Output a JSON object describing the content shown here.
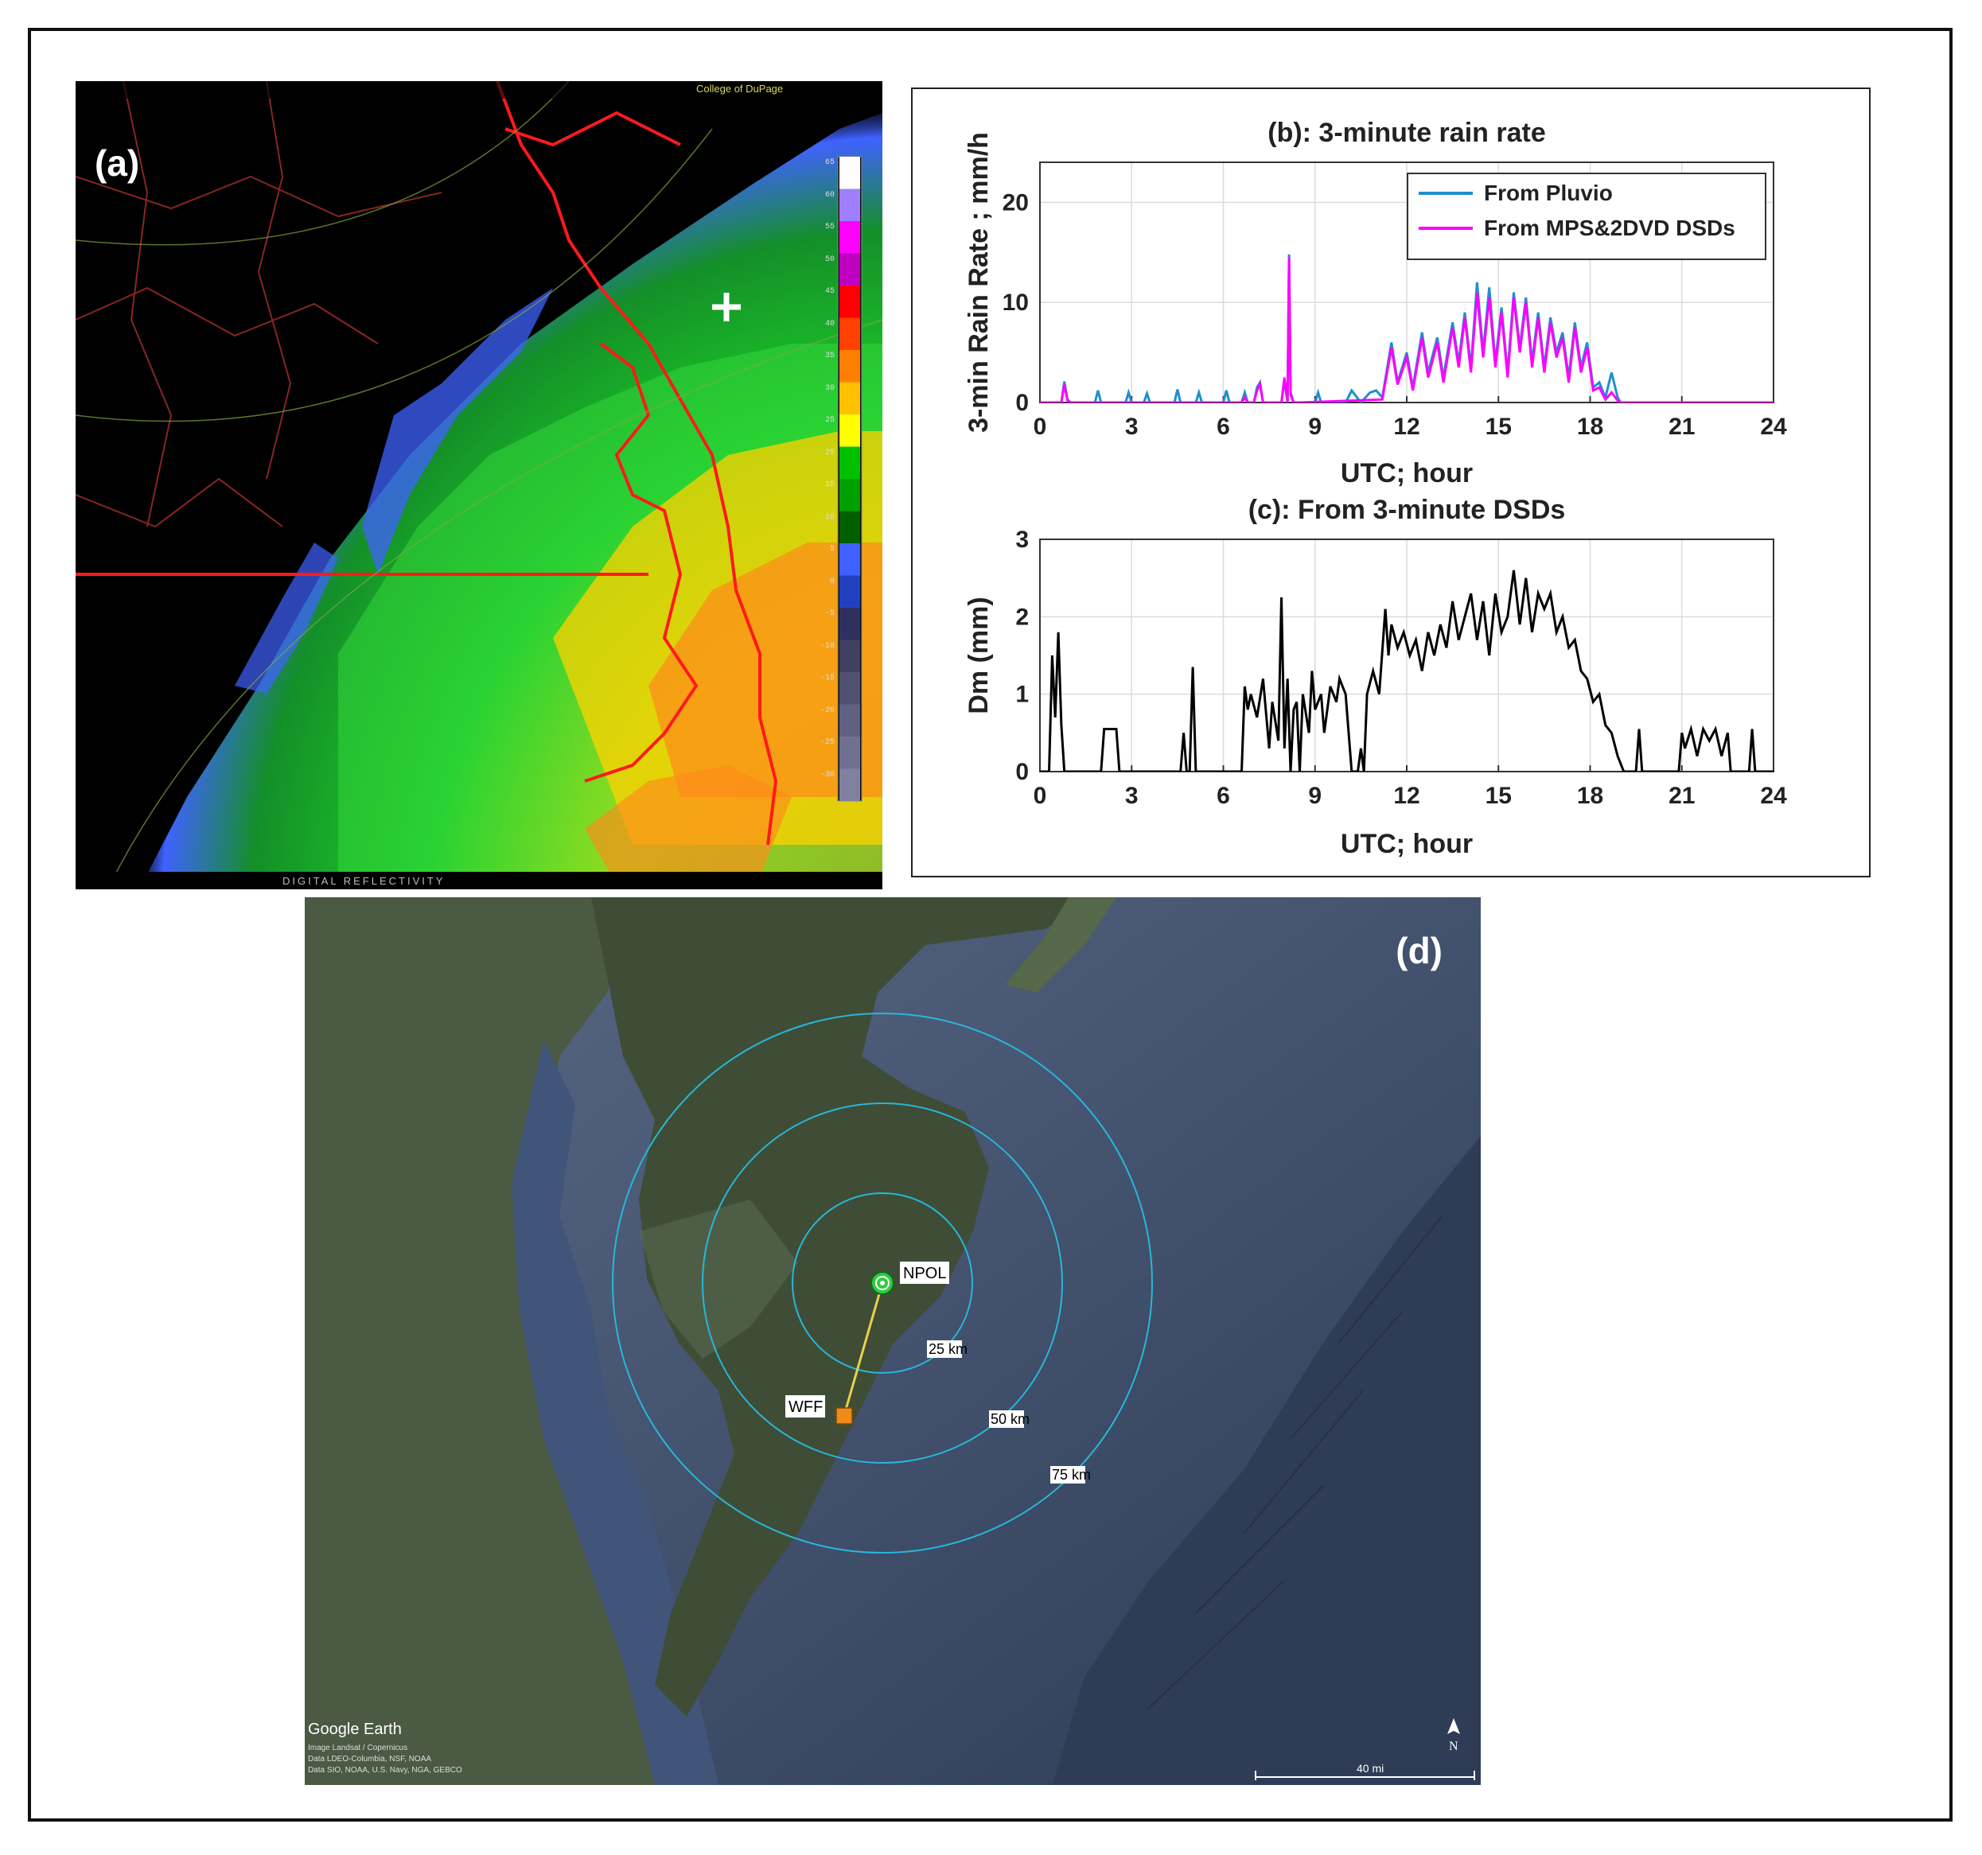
{
  "panels": {
    "a": {
      "label": "(a)",
      "header_text": "College of DuPage",
      "footer_text": "DIGITAL REFLECTIVITY",
      "colorbar_ticks": [
        "65",
        "60",
        "55",
        "50",
        "45",
        "40",
        "35",
        "30",
        "25",
        "20",
        "15",
        "10",
        "5",
        "0",
        "-5",
        "-10",
        "-15",
        "-20",
        "-25",
        "-30"
      ],
      "colorbar_colors": [
        "#ffffff",
        "#9f7fff",
        "#ff00ff",
        "#c000c0",
        "#ff0000",
        "#ff4000",
        "#ff8000",
        "#ffc000",
        "#ffff00",
        "#00c000",
        "#00a000",
        "#006000",
        "#4060ff",
        "#2040c0",
        "#303060",
        "#404060",
        "#505070",
        "#606080",
        "#707090",
        "#8080a0"
      ]
    },
    "d": {
      "label": "(d)",
      "sites": {
        "npol": "NPOL",
        "wff": "WFF"
      },
      "ranges": [
        "25 km",
        "50 km",
        "75 km"
      ],
      "scale_label": "40 mi",
      "north_label": "N",
      "brand": "Google Earth",
      "credits": [
        "Image Landsat / Copernicus",
        "Data LDEO-Columbia, NSF, NOAA",
        "Data SIO, NOAA, U.S. Navy, NGA, GEBCO"
      ]
    }
  },
  "chart_data": [
    {
      "type": "line",
      "title": "(b): 3-minute rain rate",
      "xlabel": "UTC; hour",
      "ylabel": "3-min Rain Rate ; mm/h",
      "xlim": [
        0,
        24
      ],
      "ylim": [
        0,
        24
      ],
      "xticks": [
        0,
        3,
        6,
        9,
        12,
        15,
        18,
        21,
        24
      ],
      "yticks": [
        0,
        10,
        20
      ],
      "grid": true,
      "legend_position": "top-right",
      "series": [
        {
          "name": "From Pluvio",
          "color": "#1f8fce",
          "x": [
            0,
            0.7,
            0.8,
            0.9,
            1.0,
            1.8,
            1.9,
            2.0,
            2.8,
            2.9,
            3.0,
            3.4,
            3.5,
            3.6,
            4.4,
            4.5,
            4.6,
            5.1,
            5.2,
            5.3,
            6.0,
            6.1,
            6.2,
            6.6,
            6.7,
            6.8,
            7.0,
            7.1,
            7.2,
            7.3,
            7.9,
            8.0,
            8.1,
            8.15,
            8.2,
            8.3,
            8.5,
            9.0,
            9.1,
            9.2,
            9.5,
            10.0,
            10.2,
            10.5,
            10.8,
            11.0,
            11.2,
            11.5,
            11.7,
            12.0,
            12.2,
            12.5,
            12.7,
            13.0,
            13.2,
            13.5,
            13.7,
            13.9,
            14.1,
            14.3,
            14.5,
            14.7,
            14.9,
            15.1,
            15.3,
            15.5,
            15.7,
            15.9,
            16.1,
            16.3,
            16.5,
            16.7,
            16.9,
            17.1,
            17.3,
            17.5,
            17.7,
            17.9,
            18.1,
            18.3,
            18.5,
            18.7,
            18.9,
            19.0,
            19.5,
            20.0,
            21.0,
            22.0,
            23.0,
            24.0
          ],
          "y": [
            0,
            0,
            2.1,
            0.3,
            0,
            0,
            1.2,
            0,
            0,
            1.0,
            0,
            0,
            0.9,
            0,
            0,
            1.3,
            0,
            0,
            1.0,
            0,
            0,
            1.2,
            0,
            0,
            1.0,
            0,
            0,
            1.5,
            2.0,
            0,
            0,
            2.2,
            0,
            14.8,
            1.0,
            0,
            0,
            0,
            1.0,
            0,
            0,
            0,
            1.2,
            0,
            1.0,
            1.2,
            0.5,
            6.0,
            2.0,
            5.0,
            1.5,
            7.0,
            3.0,
            6.5,
            2.5,
            8.0,
            4.0,
            9.0,
            3.5,
            12.0,
            5.0,
            11.5,
            4.0,
            9.5,
            3.0,
            11.0,
            5.5,
            10.5,
            4.0,
            9.0,
            3.5,
            8.5,
            5.0,
            7.0,
            2.5,
            8.0,
            3.5,
            6.0,
            1.5,
            2.0,
            0.5,
            3.0,
            0.5,
            0,
            0,
            0,
            0,
            0,
            0,
            0
          ]
        },
        {
          "name": "From MPS&2DVD DSDs",
          "color": "#ff00ff",
          "x": [
            0,
            0.7,
            0.8,
            0.9,
            1.0,
            6.6,
            6.7,
            6.8,
            7.0,
            7.1,
            7.2,
            7.3,
            7.9,
            8.0,
            8.1,
            8.15,
            8.2,
            8.3,
            8.5,
            11.2,
            11.5,
            11.7,
            12.0,
            12.2,
            12.5,
            12.7,
            13.0,
            13.2,
            13.5,
            13.7,
            13.9,
            14.1,
            14.3,
            14.5,
            14.7,
            14.9,
            15.1,
            15.3,
            15.5,
            15.7,
            15.9,
            16.1,
            16.3,
            16.5,
            16.7,
            16.9,
            17.1,
            17.3,
            17.5,
            17.7,
            17.9,
            18.1,
            18.3,
            18.5,
            18.7,
            18.9,
            19.0,
            24.0
          ],
          "y": [
            0,
            0,
            1.8,
            0.2,
            0,
            0,
            0.5,
            0,
            0,
            1.2,
            1.8,
            0,
            0,
            2.5,
            0,
            14.5,
            0.8,
            0,
            0,
            0.3,
            5.5,
            1.8,
            4.5,
            1.2,
            6.5,
            2.5,
            6.0,
            2.0,
            7.5,
            3.5,
            8.5,
            3.0,
            11.0,
            4.5,
            10.5,
            3.5,
            9.0,
            2.5,
            10.5,
            5.0,
            10.0,
            3.5,
            8.5,
            3.0,
            8.0,
            4.5,
            6.5,
            2.0,
            7.5,
            3.0,
            5.5,
            1.2,
            1.5,
            0.3,
            1.0,
            0.2,
            0,
            0
          ]
        }
      ]
    },
    {
      "type": "line",
      "title": "(c): From 3-minute DSDs",
      "xlabel": "UTC; hour",
      "ylabel": "Dm (mm)",
      "xlim": [
        0,
        24
      ],
      "ylim": [
        0,
        3
      ],
      "xticks": [
        0,
        3,
        6,
        9,
        12,
        15,
        18,
        21,
        24
      ],
      "yticks": [
        0,
        1,
        2,
        3
      ],
      "grid": true,
      "series": [
        {
          "color": "#000000",
          "x": [
            0,
            0.3,
            0.4,
            0.5,
            0.6,
            0.7,
            0.8,
            0.9,
            1.0,
            2.0,
            2.1,
            2.2,
            2.5,
            2.6,
            2.7,
            4.6,
            4.7,
            4.8,
            4.9,
            5.0,
            5.1,
            5.2,
            6.6,
            6.7,
            6.8,
            6.9,
            7.1,
            7.3,
            7.5,
            7.6,
            7.8,
            7.9,
            8.0,
            8.1,
            8.2,
            8.3,
            8.4,
            8.5,
            8.6,
            8.8,
            8.9,
            9.0,
            9.2,
            9.3,
            9.5,
            9.7,
            9.8,
            10.0,
            10.2,
            10.4,
            10.5,
            10.6,
            10.7,
            10.9,
            11.1,
            11.3,
            11.4,
            11.5,
            11.7,
            11.9,
            12.1,
            12.3,
            12.5,
            12.7,
            12.9,
            13.1,
            13.3,
            13.5,
            13.7,
            13.9,
            14.1,
            14.3,
            14.5,
            14.7,
            14.9,
            15.1,
            15.3,
            15.5,
            15.7,
            15.9,
            16.1,
            16.3,
            16.5,
            16.7,
            16.9,
            17.1,
            17.3,
            17.5,
            17.7,
            17.9,
            18.1,
            18.3,
            18.5,
            18.7,
            18.9,
            19.1,
            19.3,
            19.5,
            19.6,
            19.7,
            19.8,
            20.9,
            21.0,
            21.1,
            21.3,
            21.5,
            21.7,
            21.9,
            22.1,
            22.3,
            22.5,
            22.6,
            22.7,
            23.2,
            23.3,
            23.4,
            24.0
          ],
          "y": [
            0,
            0,
            1.5,
            0.7,
            1.8,
            0.6,
            0,
            0,
            0,
            0,
            0.55,
            0.55,
            0.55,
            0,
            0,
            0,
            0.5,
            0,
            0,
            1.35,
            0,
            0,
            0,
            1.1,
            0.8,
            1.0,
            0.7,
            1.2,
            0.3,
            0.9,
            0.4,
            2.25,
            0.3,
            1.2,
            0,
            0.8,
            0.9,
            0,
            1.0,
            0.5,
            1.3,
            0.8,
            1.0,
            0.5,
            1.1,
            0.9,
            1.2,
            1.0,
            0.0,
            0.0,
            0.3,
            0,
            1.0,
            1.3,
            1.0,
            2.1,
            1.5,
            1.9,
            1.6,
            1.8,
            1.5,
            1.7,
            1.3,
            1.8,
            1.5,
            1.9,
            1.6,
            2.2,
            1.7,
            2.0,
            2.3,
            1.7,
            2.2,
            1.5,
            2.3,
            1.8,
            2.0,
            2.6,
            1.9,
            2.5,
            1.8,
            2.3,
            2.1,
            2.3,
            1.8,
            2.0,
            1.6,
            1.7,
            1.3,
            1.2,
            0.9,
            1.0,
            0.6,
            0.5,
            0.2,
            0,
            0,
            0,
            0.55,
            0,
            0,
            0,
            0.5,
            0.3,
            0.55,
            0.2,
            0.55,
            0.4,
            0.55,
            0.2,
            0.5,
            0,
            0,
            0,
            0.55,
            0,
            0
          ]
        }
      ]
    }
  ]
}
